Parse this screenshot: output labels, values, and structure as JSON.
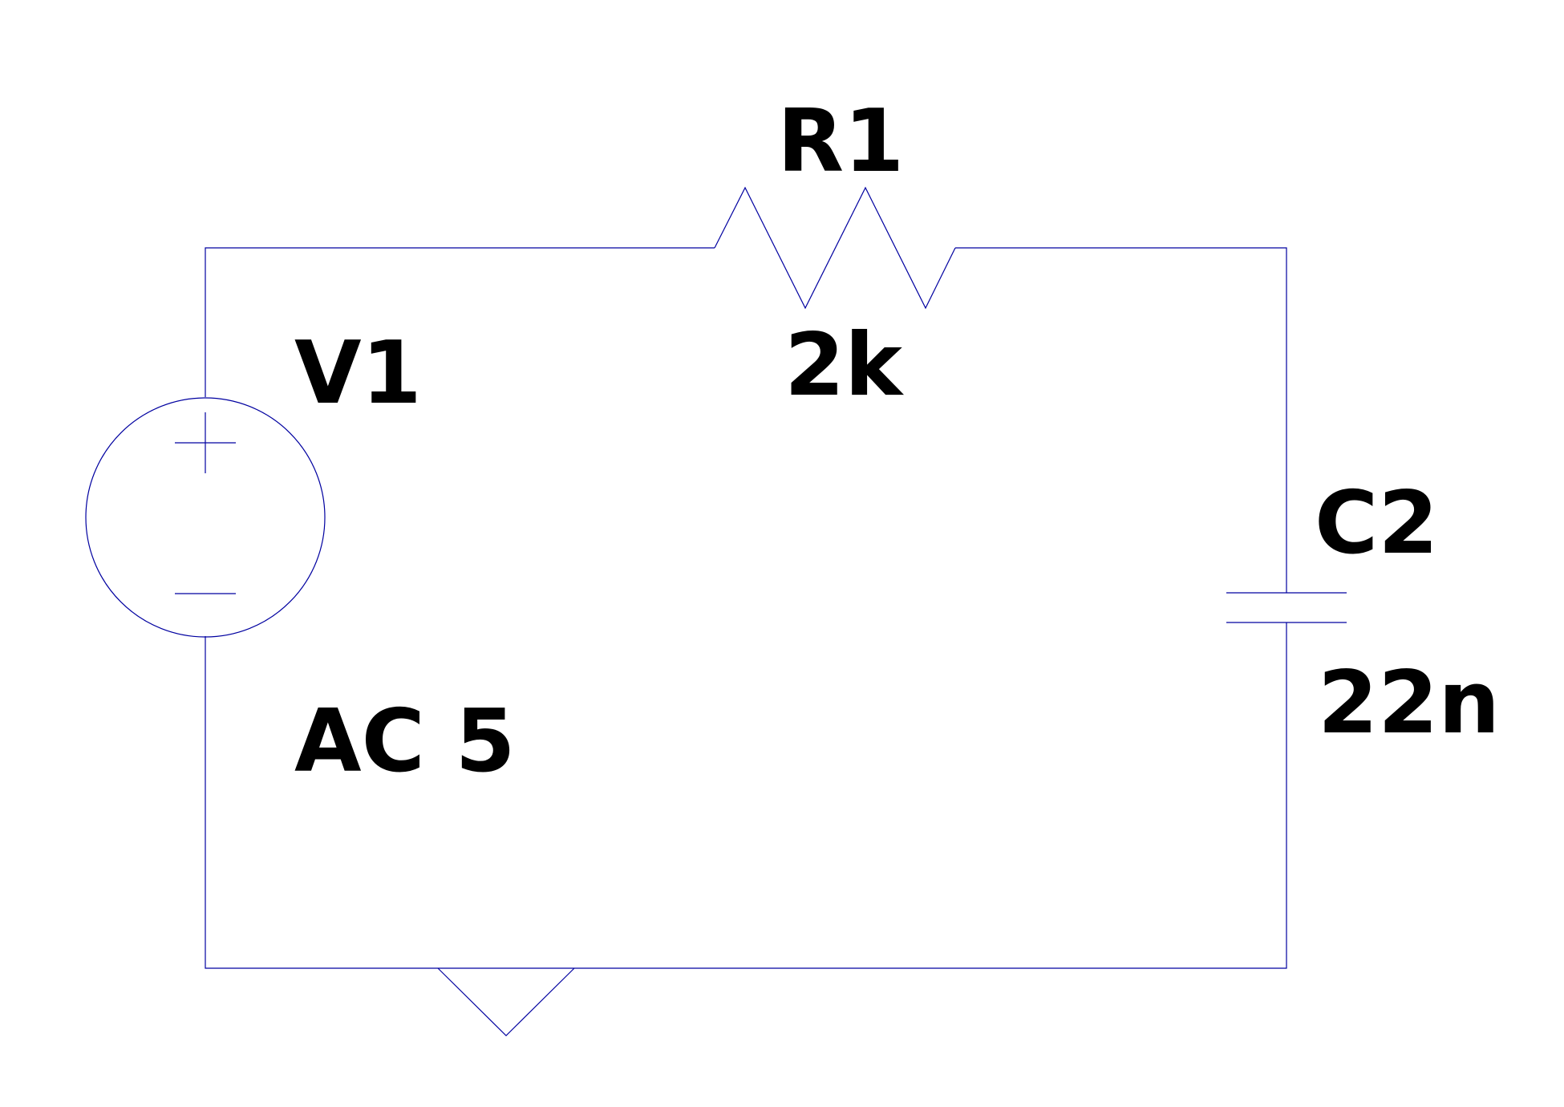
{
  "colors": {
    "wire": "#0000a0",
    "text": "#000000",
    "background": "#ffffff"
  },
  "components": {
    "voltage_source": {
      "symbol": "ac-voltage-source",
      "name": "V1",
      "value": "AC 5"
    },
    "resistor": {
      "symbol": "resistor",
      "name": "R1",
      "value": "2k"
    },
    "capacitor": {
      "symbol": "capacitor",
      "name": "C2",
      "value": "22n"
    },
    "ground": {
      "symbol": "ground"
    }
  }
}
